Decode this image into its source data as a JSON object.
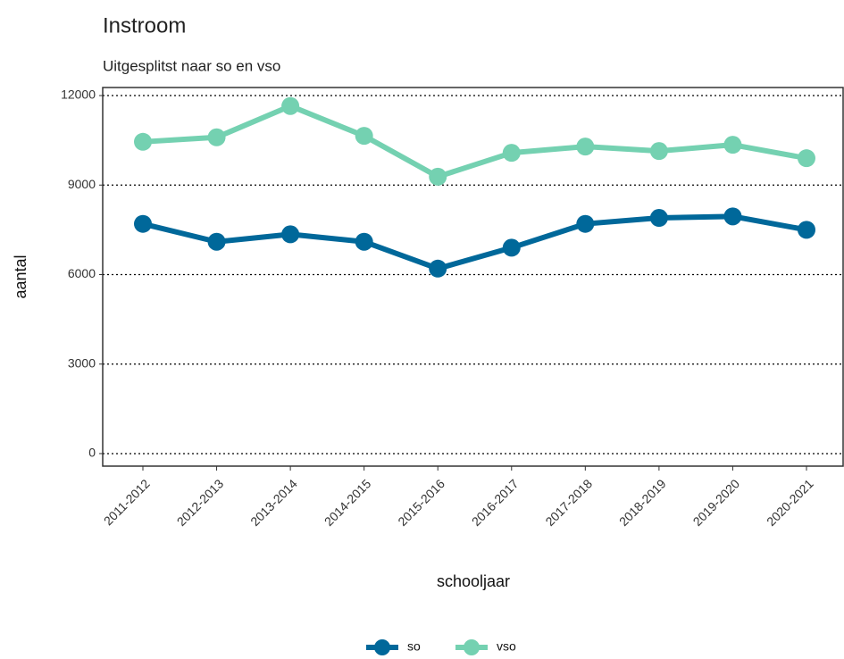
{
  "chart_data": {
    "type": "line",
    "title": "Instroom",
    "subtitle": "Uitgesplitst naar so en vso",
    "x_label": "schooljaar",
    "y_label": "aantal",
    "categories": [
      "2011-2012",
      "2012-2013",
      "2013-2014",
      "2014-2015",
      "2015-2016",
      "2016-2017",
      "2017-2018",
      "2018-2019",
      "2019-2020",
      "2020-2021"
    ],
    "series": [
      {
        "name": "so",
        "color": "#00689a",
        "values": [
          7700,
          7100,
          7350,
          7100,
          6200,
          6900,
          7700,
          7900,
          7950,
          7500
        ]
      },
      {
        "name": "vso",
        "color": "#74d1b1",
        "values": [
          10450,
          10600,
          11650,
          10650,
          9280,
          10080,
          10290,
          10140,
          10350,
          9900
        ]
      }
    ],
    "ylim": [
      -420,
      12270
    ],
    "yticks": [
      0,
      3000,
      6000,
      9000,
      12000
    ],
    "grid": true,
    "legend": "bottom"
  }
}
